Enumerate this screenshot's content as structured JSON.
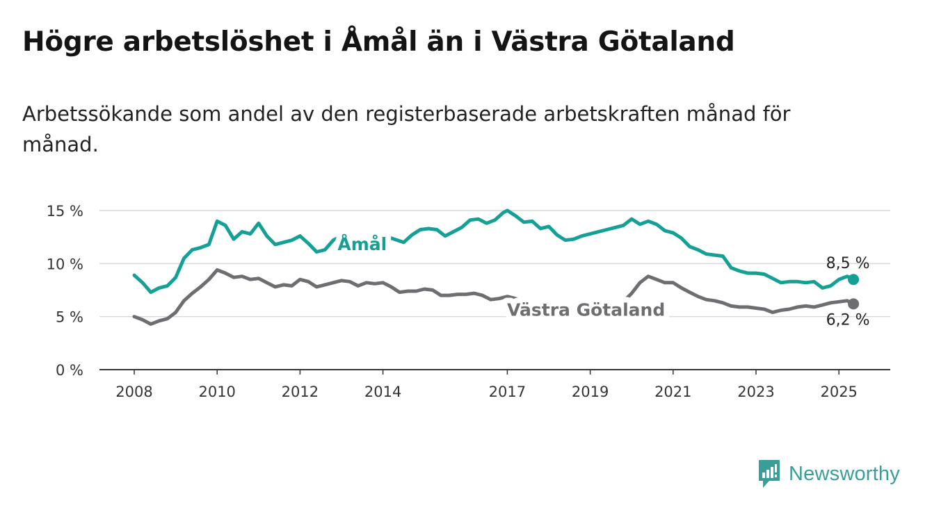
{
  "header": {
    "title": "Högre arbetslöshet i Åmål än i Västra Götaland",
    "subtitle": "Arbetssökande som andel av den registerbaserade arbetskraften månad för månad."
  },
  "brand": {
    "name": "Newsworthy",
    "icon": "newsworthy-chart-bubble-icon",
    "color": "#3a9e98"
  },
  "chart_data": {
    "type": "line",
    "title": "Högre arbetslöshet i Åmål än i Västra Götaland",
    "subtitle": "Arbetssökande som andel av den registerbaserade arbetskraften månad för månad.",
    "xlabel": "",
    "ylabel": "",
    "xlim": [
      2008,
      2025.8
    ],
    "ylim": [
      0,
      15
    ],
    "x_ticks": [
      2008,
      2010,
      2012,
      2014,
      2017,
      2019,
      2021,
      2023,
      2025
    ],
    "y_ticks": [
      {
        "value": 0,
        "label": "0 %"
      },
      {
        "value": 5,
        "label": "5 %"
      },
      {
        "value": 10,
        "label": "10 %"
      },
      {
        "value": 15,
        "label": "15 %"
      }
    ],
    "grid": "horizontal",
    "series": [
      {
        "name": "Åmål",
        "color": "#14a095",
        "label_at": 2013.5,
        "end_label": "8,5 %",
        "points": [
          [
            2008.0,
            8.9
          ],
          [
            2008.2,
            8.2
          ],
          [
            2008.4,
            7.3
          ],
          [
            2008.6,
            7.7
          ],
          [
            2008.8,
            7.9
          ],
          [
            2009.0,
            8.7
          ],
          [
            2009.2,
            10.5
          ],
          [
            2009.4,
            11.3
          ],
          [
            2009.6,
            11.5
          ],
          [
            2009.8,
            11.8
          ],
          [
            2010.0,
            14.0
          ],
          [
            2010.2,
            13.6
          ],
          [
            2010.4,
            12.3
          ],
          [
            2010.6,
            13.0
          ],
          [
            2010.8,
            12.8
          ],
          [
            2011.0,
            13.8
          ],
          [
            2011.2,
            12.6
          ],
          [
            2011.4,
            11.8
          ],
          [
            2011.6,
            12.0
          ],
          [
            2011.8,
            12.2
          ],
          [
            2012.0,
            12.6
          ],
          [
            2012.2,
            11.9
          ],
          [
            2012.4,
            11.1
          ],
          [
            2012.6,
            11.3
          ],
          [
            2012.8,
            12.2
          ],
          [
            2013.0,
            12.6
          ],
          [
            2013.2,
            12.2
          ],
          [
            2013.5,
            11.8
          ],
          [
            2013.8,
            12.1
          ],
          [
            2014.0,
            12.0
          ],
          [
            2014.2,
            12.4
          ],
          [
            2014.5,
            12.0
          ],
          [
            2014.7,
            12.7
          ],
          [
            2014.9,
            13.2
          ],
          [
            2015.1,
            13.3
          ],
          [
            2015.3,
            13.2
          ],
          [
            2015.5,
            12.6
          ],
          [
            2015.7,
            13.0
          ],
          [
            2015.9,
            13.4
          ],
          [
            2016.1,
            14.1
          ],
          [
            2016.3,
            14.2
          ],
          [
            2016.5,
            13.8
          ],
          [
            2016.7,
            14.1
          ],
          [
            2016.9,
            14.8
          ],
          [
            2017.0,
            15.0
          ],
          [
            2017.2,
            14.5
          ],
          [
            2017.4,
            13.9
          ],
          [
            2017.6,
            14.0
          ],
          [
            2017.8,
            13.3
          ],
          [
            2018.0,
            13.5
          ],
          [
            2018.2,
            12.7
          ],
          [
            2018.4,
            12.2
          ],
          [
            2018.6,
            12.3
          ],
          [
            2018.8,
            12.6
          ],
          [
            2019.0,
            12.8
          ],
          [
            2019.2,
            13.0
          ],
          [
            2019.4,
            13.2
          ],
          [
            2019.6,
            13.4
          ],
          [
            2019.8,
            13.6
          ],
          [
            2020.0,
            14.2
          ],
          [
            2020.2,
            13.7
          ],
          [
            2020.4,
            14.0
          ],
          [
            2020.6,
            13.7
          ],
          [
            2020.8,
            13.1
          ],
          [
            2021.0,
            12.9
          ],
          [
            2021.2,
            12.4
          ],
          [
            2021.4,
            11.6
          ],
          [
            2021.6,
            11.3
          ],
          [
            2021.8,
            10.9
          ],
          [
            2022.0,
            10.8
          ],
          [
            2022.2,
            10.7
          ],
          [
            2022.4,
            9.6
          ],
          [
            2022.6,
            9.3
          ],
          [
            2022.8,
            9.1
          ],
          [
            2023.0,
            9.1
          ],
          [
            2023.2,
            9.0
          ],
          [
            2023.4,
            8.6
          ],
          [
            2023.6,
            8.2
          ],
          [
            2023.8,
            8.3
          ],
          [
            2024.0,
            8.3
          ],
          [
            2024.2,
            8.2
          ],
          [
            2024.4,
            8.3
          ],
          [
            2024.6,
            7.7
          ],
          [
            2024.8,
            7.9
          ],
          [
            2025.0,
            8.5
          ],
          [
            2025.2,
            8.8
          ],
          [
            2025.35,
            8.5
          ]
        ]
      },
      {
        "name": "Västra Götaland",
        "color": "#6e6d72",
        "label_at": 2018.9,
        "end_label": "6,2 %",
        "points": [
          [
            2008.0,
            5.0
          ],
          [
            2008.2,
            4.7
          ],
          [
            2008.4,
            4.3
          ],
          [
            2008.6,
            4.6
          ],
          [
            2008.8,
            4.8
          ],
          [
            2009.0,
            5.4
          ],
          [
            2009.2,
            6.5
          ],
          [
            2009.4,
            7.2
          ],
          [
            2009.6,
            7.8
          ],
          [
            2009.8,
            8.5
          ],
          [
            2010.0,
            9.4
          ],
          [
            2010.2,
            9.1
          ],
          [
            2010.4,
            8.7
          ],
          [
            2010.6,
            8.8
          ],
          [
            2010.8,
            8.5
          ],
          [
            2011.0,
            8.6
          ],
          [
            2011.2,
            8.2
          ],
          [
            2011.4,
            7.8
          ],
          [
            2011.6,
            8.0
          ],
          [
            2011.8,
            7.9
          ],
          [
            2012.0,
            8.5
          ],
          [
            2012.2,
            8.3
          ],
          [
            2012.4,
            7.8
          ],
          [
            2012.6,
            8.0
          ],
          [
            2012.8,
            8.2
          ],
          [
            2013.0,
            8.4
          ],
          [
            2013.2,
            8.3
          ],
          [
            2013.4,
            7.9
          ],
          [
            2013.6,
            8.2
          ],
          [
            2013.8,
            8.1
          ],
          [
            2014.0,
            8.2
          ],
          [
            2014.2,
            7.8
          ],
          [
            2014.4,
            7.3
          ],
          [
            2014.6,
            7.4
          ],
          [
            2014.8,
            7.4
          ],
          [
            2015.0,
            7.6
          ],
          [
            2015.2,
            7.5
          ],
          [
            2015.4,
            7.0
          ],
          [
            2015.6,
            7.0
          ],
          [
            2015.8,
            7.1
          ],
          [
            2016.0,
            7.1
          ],
          [
            2016.2,
            7.2
          ],
          [
            2016.4,
            7.0
          ],
          [
            2016.6,
            6.6
          ],
          [
            2016.8,
            6.7
          ],
          [
            2017.0,
            6.9
          ],
          [
            2017.2,
            6.7
          ],
          [
            2017.4,
            6.4
          ],
          [
            2017.6,
            6.3
          ],
          [
            2017.8,
            6.2
          ],
          [
            2018.0,
            6.0
          ],
          [
            2018.2,
            5.9
          ],
          [
            2018.4,
            5.7
          ],
          [
            2018.6,
            5.8
          ],
          [
            2018.9,
            5.6
          ],
          [
            2019.2,
            5.7
          ],
          [
            2019.5,
            5.9
          ],
          [
            2019.8,
            6.4
          ],
          [
            2020.0,
            7.2
          ],
          [
            2020.2,
            8.2
          ],
          [
            2020.4,
            8.8
          ],
          [
            2020.6,
            8.5
          ],
          [
            2020.8,
            8.2
          ],
          [
            2021.0,
            8.2
          ],
          [
            2021.2,
            7.7
          ],
          [
            2021.4,
            7.3
          ],
          [
            2021.6,
            6.9
          ],
          [
            2021.8,
            6.6
          ],
          [
            2022.0,
            6.5
          ],
          [
            2022.2,
            6.3
          ],
          [
            2022.4,
            6.0
          ],
          [
            2022.6,
            5.9
          ],
          [
            2022.8,
            5.9
          ],
          [
            2023.0,
            5.8
          ],
          [
            2023.2,
            5.7
          ],
          [
            2023.4,
            5.4
          ],
          [
            2023.6,
            5.6
          ],
          [
            2023.8,
            5.7
          ],
          [
            2024.0,
            5.9
          ],
          [
            2024.2,
            6.0
          ],
          [
            2024.4,
            5.9
          ],
          [
            2024.6,
            6.1
          ],
          [
            2024.8,
            6.3
          ],
          [
            2025.0,
            6.4
          ],
          [
            2025.2,
            6.5
          ],
          [
            2025.35,
            6.2
          ]
        ]
      }
    ]
  }
}
